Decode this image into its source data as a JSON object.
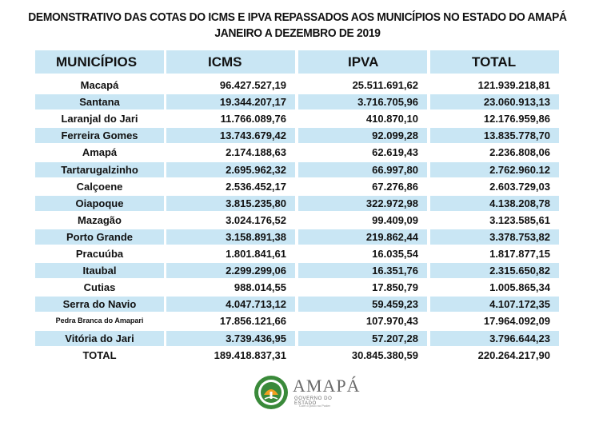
{
  "title": {
    "line1": "DEMONSTRATIVO DAS COTAS DO ICMS E IPVA REPASSADOS AOS MUNICÍPIOS NO ESTADO DO AMAPÁ",
    "line2": "JANEIRO A DEZEMBRO DE 2019"
  },
  "headers": {
    "municipios": "MUNICÍPIOS",
    "icms": "ICMS",
    "ipva": "IPVA",
    "total": "TOTAL"
  },
  "rows": [
    {
      "municipio": "Macapá",
      "icms": "96.427.527,19",
      "ipva": "25.511.691,62",
      "total": "121.939.218,81"
    },
    {
      "municipio": "Santana",
      "icms": "19.344.207,17",
      "ipva": "3.716.705,96",
      "total": "23.060.913,13"
    },
    {
      "municipio": "Laranjal do Jari",
      "icms": "11.766.089,76",
      "ipva": "410.870,10",
      "total": "12.176.959,86"
    },
    {
      "municipio": "Ferreira Gomes",
      "icms": "13.743.679,42",
      "ipva": "92.099,28",
      "total": "13.835.778,70"
    },
    {
      "municipio": "Amapá",
      "icms": "2.174.188,63",
      "ipva": "62.619,43",
      "total": "2.236.808,06"
    },
    {
      "municipio": "Tartarugalzinho",
      "icms": "2.695.962,32",
      "ipva": "66.997,80",
      "total": "2.762.960.12"
    },
    {
      "municipio": "Calçoene",
      "icms": "2.536.452,17",
      "ipva": "67.276,86",
      "total": "2.603.729,03"
    },
    {
      "municipio": "Oiapoque",
      "icms": "3.815.235,80",
      "ipva": "322.972,98",
      "total": "4.138.208,78"
    },
    {
      "municipio": "Mazagão",
      "icms": "3.024.176,52",
      "ipva": "99.409,09",
      "total": "3.123.585,61"
    },
    {
      "municipio": "Porto Grande",
      "icms": "3.158.891,38",
      "ipva": "219.862,44",
      "total": "3.378.753,82"
    },
    {
      "municipio": "Pracuúba",
      "icms": "1.801.841,61",
      "ipva": "16.035,54",
      "total": "1.817.877,15"
    },
    {
      "municipio": "Itaubal",
      "icms": "2.299.299,06",
      "ipva": "16.351,76",
      "total": "2.315.650,82"
    },
    {
      "municipio": "Cutias",
      "icms": "988.014,55",
      "ipva": "17.850,79",
      "total": "1.005.865,34"
    },
    {
      "municipio": "Serra do Navio",
      "icms": "4.047.713,12",
      "ipva": "59.459,23",
      "total": "4.107.172,35"
    },
    {
      "municipio": "Pedra Branca do Amapari",
      "icms": "17.856.121,66",
      "ipva": "107.970,43",
      "total": "17.964.092,09"
    },
    {
      "municipio": "Vitória do Jari",
      "icms": "3.739.436,95",
      "ipva": "57.207,28",
      "total": "3.796.644,23"
    }
  ],
  "totals": {
    "label": "TOTAL",
    "icms": "189.418.837,31",
    "ipva": "30.845.380,59",
    "total": "220.264.217,90"
  },
  "logo": {
    "name": "AMAPÁ",
    "tagline": "GOVERNO DO ESTADO",
    "slogan": "Com o povo no Poder"
  },
  "colors": {
    "row_shade": "#c9e6f4",
    "logo_green": "#3a8a3a",
    "logo_orange": "#f0a020"
  }
}
